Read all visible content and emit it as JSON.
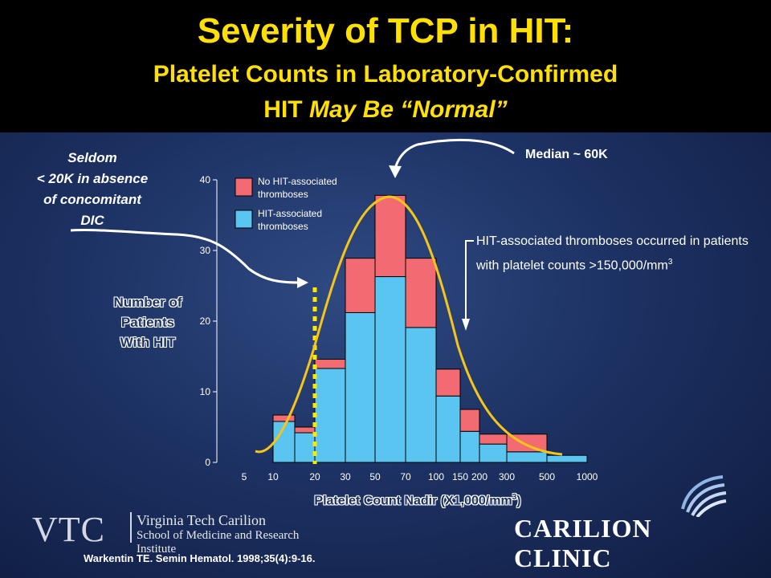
{
  "slide": {
    "title_line1": "Severity of TCP in HIT:",
    "title_line2": "Platelet Counts in Laboratory-Confirmed",
    "title_line3_prefix": "HIT ",
    "title_line3_italic": "May Be “Normal”",
    "seldom_note_lines": [
      "Seldom",
      "< 20K in absence",
      "of concomitant",
      "DIC"
    ],
    "median_label": "Median ~ 60K",
    "annotation_text": "HIT-associated thromboses occurred in patients with platelet counts >150,000/mm",
    "annotation_sup": "3",
    "ylabel_lines": [
      "Number of",
      "Patients",
      "With HIT"
    ],
    "xlabel_text": "Platelet Count Nadir (X1,000/mm",
    "xlabel_sup": "3",
    "xlabel_close": ")",
    "citation": "Warkentin TE. Semin Hematol. 1998;35(4):9-16.",
    "vtc_letters": "VTC",
    "vtc_name1": "Virginia Tech Carilion",
    "vtc_name2": "School of Medicine and Research Institute",
    "carilion_name": "CARILION CLINIC"
  },
  "chart_data": {
    "type": "bar",
    "stacked": true,
    "x_tick_labels": [
      "5",
      "10",
      "20",
      "30",
      "50",
      "70",
      "100",
      "150",
      "200",
      "300",
      "500",
      "1000"
    ],
    "y_ticks": [
      0,
      10,
      20,
      30,
      40
    ],
    "ylim": [
      0,
      40
    ],
    "bins": [
      {
        "from": "10",
        "to": "15",
        "hit_thromboses": 5.8,
        "no_hit_thromboses": 0.9
      },
      {
        "from": "15",
        "to": "20",
        "hit_thromboses": 4.2,
        "no_hit_thromboses": 0.8
      },
      {
        "from": "20",
        "to": "30",
        "hit_thromboses": 13.3,
        "no_hit_thromboses": 1.3
      },
      {
        "from": "30",
        "to": "50",
        "hit_thromboses": 21.2,
        "no_hit_thromboses": 7.7
      },
      {
        "from": "50",
        "to": "70",
        "hit_thromboses": 26.3,
        "no_hit_thromboses": 11.5
      },
      {
        "from": "70",
        "to": "100",
        "hit_thromboses": 19.1,
        "no_hit_thromboses": 9.8
      },
      {
        "from": "100",
        "to": "150",
        "hit_thromboses": 9.4,
        "no_hit_thromboses": 3.8
      },
      {
        "from": "150",
        "to": "200",
        "hit_thromboses": 4.4,
        "no_hit_thromboses": 3.1
      },
      {
        "from": "200",
        "to": "300",
        "hit_thromboses": 2.6,
        "no_hit_thromboses": 1.4
      },
      {
        "from": "300",
        "to": "500",
        "hit_thromboses": 1.5,
        "no_hit_thromboses": 2.5
      },
      {
        "from": "500",
        "to": "1000",
        "hit_thromboses": 1.0,
        "no_hit_thromboses": 0
      }
    ],
    "series": [
      {
        "name": "No HIT-associated thromboses",
        "legend_lines": [
          "No HIT-associated",
          "thromboses"
        ],
        "color": "#f26b72"
      },
      {
        "name": "HIT-associated thromboses",
        "legend_lines": [
          "HIT-associated",
          "thromboses"
        ],
        "color": "#5bc5f2"
      }
    ],
    "curve_color": "#f5c518",
    "marker_line_color": "#ffe800",
    "marker_line_x": "20"
  }
}
